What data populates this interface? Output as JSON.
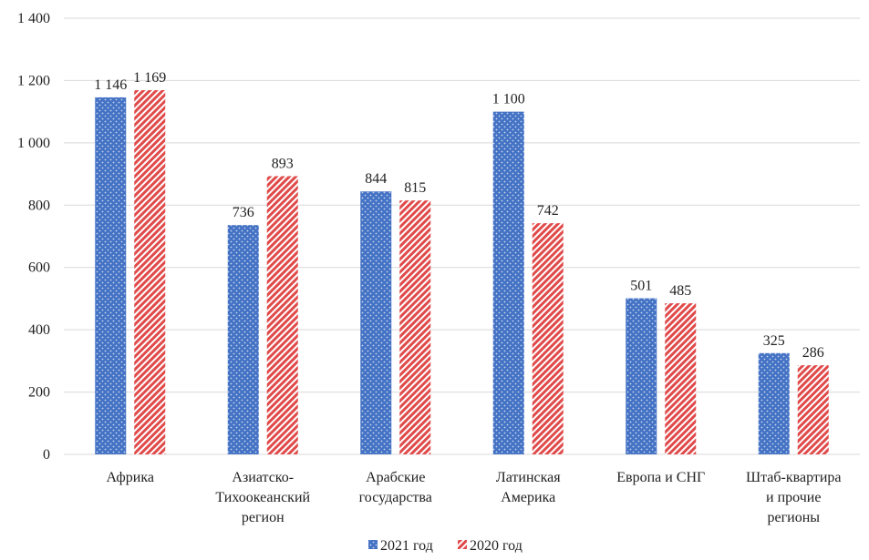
{
  "chart_data": {
    "type": "bar",
    "title": "",
    "xlabel": "",
    "ylabel": "",
    "ylim": [
      0,
      1400
    ],
    "yticks": [
      0,
      200,
      400,
      600,
      800,
      1000,
      1200,
      1400
    ],
    "ytick_labels": [
      "0",
      "200",
      "400",
      "600",
      "800",
      "1 000",
      "1 200",
      "1 400"
    ],
    "grid": true,
    "legend_position": "bottom",
    "categories": [
      [
        "Африка"
      ],
      [
        "Азиатско-",
        "Тихоокеанский",
        "регион"
      ],
      [
        "Арабские",
        "государства"
      ],
      [
        "Латинская",
        "Америка"
      ],
      [
        "Европа и СНГ"
      ],
      [
        "Штаб-квартира",
        "и прочие",
        "регионы"
      ]
    ],
    "series": [
      {
        "name": "2021 год",
        "color": "#4472c4",
        "pattern": "dots",
        "values": [
          1146,
          736,
          844,
          1100,
          501,
          325
        ],
        "labels": [
          "1 146",
          "736",
          "844",
          "1 100",
          "501",
          "325"
        ]
      },
      {
        "name": "2020 год",
        "color": "#e04a4a",
        "pattern": "diagonal-stripes",
        "values": [
          1169,
          893,
          815,
          742,
          485,
          286
        ],
        "labels": [
          "1 169",
          "893",
          "815",
          "742",
          "485",
          "286"
        ]
      }
    ]
  }
}
